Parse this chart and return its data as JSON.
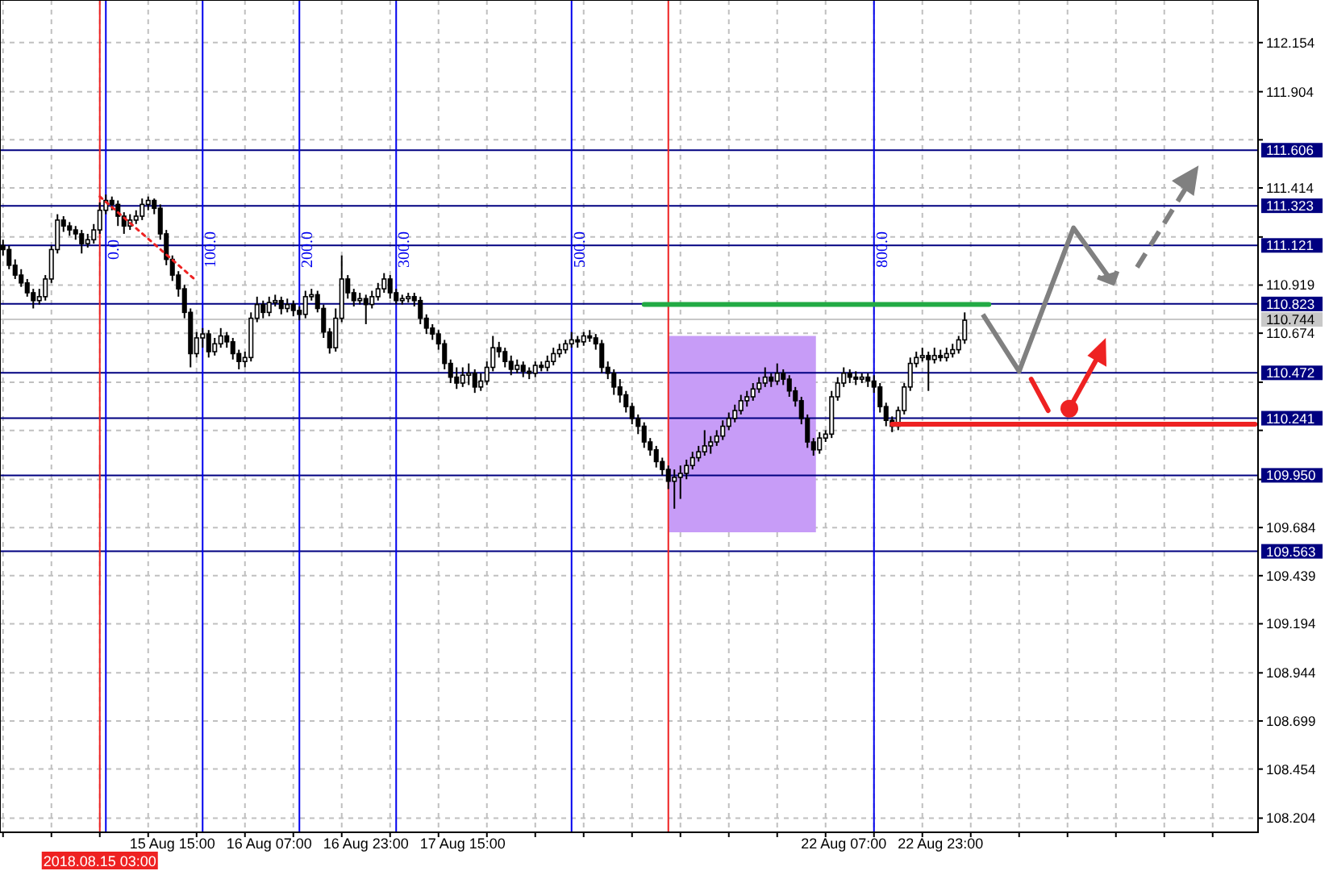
{
  "chart_data": {
    "type": "candlestick",
    "grid": true,
    "categories": [
      null,
      null,
      null,
      null,
      null,
      null,
      null,
      null,
      null,
      null,
      null,
      null,
      null,
      null,
      null,
      null,
      "2018.08.15 03:00",
      null,
      null,
      null,
      null,
      null,
      null,
      null,
      null,
      null,
      null,
      null,
      "15 Aug 15:00",
      null,
      null,
      null,
      null,
      null,
      null,
      null,
      null,
      null,
      null,
      null,
      null,
      null,
      null,
      null,
      "16 Aug 07:00",
      null,
      null,
      null,
      null,
      null,
      null,
      null,
      null,
      null,
      null,
      null,
      null,
      null,
      null,
      null,
      "16 Aug 23:00",
      null,
      null,
      null,
      null,
      null,
      null,
      null,
      null,
      null,
      null,
      null,
      null,
      null,
      null,
      null,
      "17 Aug 15:00",
      null,
      null,
      null,
      null,
      null,
      null,
      null,
      null,
      null,
      null,
      null,
      null,
      null,
      null,
      null,
      null,
      null,
      null,
      null,
      null,
      null,
      null,
      null,
      null,
      null,
      null,
      null,
      null,
      null,
      null,
      null,
      null,
      null,
      null,
      null,
      null,
      null,
      null,
      null,
      null,
      null,
      null,
      null,
      null,
      null,
      null,
      null,
      null,
      null,
      null,
      null,
      null,
      null,
      null,
      null,
      null,
      null,
      null,
      null,
      null,
      null,
      null,
      "22 Aug 07:00",
      null,
      null,
      null,
      null,
      null,
      null,
      null,
      null,
      null,
      null,
      null,
      null,
      null,
      null,
      null,
      "22 Aug 23:00",
      null,
      null,
      null,
      null,
      null,
      null,
      null,
      null,
      null,
      null,
      null,
      null,
      null,
      null,
      null,
      null,
      null,
      null,
      null,
      null,
      null,
      null,
      null,
      null,
      null,
      null,
      null,
      null,
      null,
      null,
      null,
      null,
      null,
      null,
      null,
      null,
      null,
      null,
      null,
      null,
      null,
      null,
      null,
      null,
      null,
      null,
      null,
      null,
      null,
      null,
      null,
      null
    ],
    "ohlc": [
      [
        111.12,
        111.15,
        111.07,
        111.1
      ],
      [
        111.1,
        111.12,
        111.0,
        111.02
      ],
      [
        111.02,
        111.05,
        110.95,
        110.97
      ],
      [
        110.97,
        111.0,
        110.91,
        110.93
      ],
      [
        110.93,
        110.95,
        110.86,
        110.88
      ],
      [
        110.88,
        110.9,
        110.8,
        110.84
      ],
      [
        110.84,
        110.9,
        110.82,
        110.86
      ],
      [
        110.86,
        110.97,
        110.84,
        110.95
      ],
      [
        110.95,
        111.12,
        110.93,
        111.1
      ],
      [
        111.1,
        111.28,
        111.08,
        111.25
      ],
      [
        111.25,
        111.27,
        111.19,
        111.22
      ],
      [
        111.22,
        111.24,
        111.17,
        111.2
      ],
      [
        111.2,
        111.22,
        111.15,
        111.18
      ],
      [
        111.18,
        111.2,
        111.08,
        111.13
      ],
      [
        111.13,
        111.18,
        111.11,
        111.15
      ],
      [
        111.15,
        111.23,
        111.13,
        111.2
      ],
      [
        111.2,
        111.34,
        111.18,
        111.3
      ],
      [
        111.3,
        111.38,
        111.28,
        111.35
      ],
      [
        111.35,
        111.37,
        111.3,
        111.33
      ],
      [
        111.33,
        111.35,
        111.22,
        111.27
      ],
      [
        111.27,
        111.29,
        111.18,
        111.22
      ],
      [
        111.22,
        111.28,
        111.2,
        111.25
      ],
      [
        111.25,
        111.3,
        111.23,
        111.27
      ],
      [
        111.27,
        111.36,
        111.25,
        111.33
      ],
      [
        111.33,
        111.37,
        111.3,
        111.35
      ],
      [
        111.35,
        111.36,
        111.28,
        111.31
      ],
      [
        111.31,
        111.33,
        111.15,
        111.18
      ],
      [
        111.18,
        111.2,
        111.02,
        111.05
      ],
      [
        111.05,
        111.07,
        110.94,
        110.97
      ],
      [
        110.97,
        110.99,
        110.86,
        110.9
      ],
      [
        110.9,
        110.92,
        110.75,
        110.78
      ],
      [
        110.78,
        110.8,
        110.5,
        110.57
      ],
      [
        110.57,
        110.68,
        110.55,
        110.65
      ],
      [
        110.65,
        110.7,
        110.6,
        110.67
      ],
      [
        110.67,
        110.69,
        110.55,
        110.58
      ],
      [
        110.58,
        110.65,
        110.56,
        110.62
      ],
      [
        110.62,
        110.7,
        110.6,
        110.66
      ],
      [
        110.66,
        110.68,
        110.6,
        110.63
      ],
      [
        110.63,
        110.65,
        110.54,
        110.57
      ],
      [
        110.57,
        110.59,
        110.49,
        110.53
      ],
      [
        110.53,
        110.58,
        110.5,
        110.55
      ],
      [
        110.55,
        110.78,
        110.53,
        110.75
      ],
      [
        110.75,
        110.86,
        110.73,
        110.82
      ],
      [
        110.82,
        110.84,
        110.75,
        110.78
      ],
      [
        110.78,
        110.86,
        110.76,
        110.83
      ],
      [
        110.83,
        110.87,
        110.81,
        110.84
      ],
      [
        110.84,
        110.86,
        110.77,
        110.8
      ],
      [
        110.8,
        110.85,
        110.78,
        110.82
      ],
      [
        110.82,
        110.84,
        110.76,
        110.79
      ],
      [
        110.79,
        110.81,
        110.74,
        110.77
      ],
      [
        110.77,
        110.89,
        110.75,
        110.86
      ],
      [
        110.86,
        110.9,
        110.84,
        110.87
      ],
      [
        110.87,
        110.89,
        110.78,
        110.8
      ],
      [
        110.8,
        110.82,
        110.65,
        110.68
      ],
      [
        110.68,
        110.7,
        110.57,
        110.6
      ],
      [
        110.6,
        110.8,
        110.58,
        110.75
      ],
      [
        110.75,
        111.07,
        110.73,
        110.95
      ],
      [
        110.95,
        110.97,
        110.85,
        110.88
      ],
      [
        110.88,
        110.9,
        110.81,
        110.84
      ],
      [
        110.84,
        110.88,
        110.82,
        110.85
      ],
      [
        110.85,
        110.87,
        110.72,
        110.82
      ],
      [
        110.82,
        110.89,
        110.8,
        110.86
      ],
      [
        110.86,
        110.93,
        110.84,
        110.9
      ],
      [
        110.9,
        110.98,
        110.88,
        110.95
      ],
      [
        110.95,
        110.97,
        110.85,
        110.88
      ],
      [
        110.88,
        110.9,
        110.82,
        110.84
      ],
      [
        110.84,
        110.87,
        110.82,
        110.85
      ],
      [
        110.85,
        110.88,
        110.83,
        110.86
      ],
      [
        110.86,
        110.88,
        110.81,
        110.84
      ],
      [
        110.84,
        110.86,
        110.72,
        110.75
      ],
      [
        110.75,
        110.77,
        110.67,
        110.7
      ],
      [
        110.7,
        110.72,
        110.64,
        110.67
      ],
      [
        110.67,
        110.69,
        110.59,
        110.62
      ],
      [
        110.62,
        110.64,
        110.49,
        110.52
      ],
      [
        110.52,
        110.54,
        110.42,
        110.45
      ],
      [
        110.45,
        110.5,
        110.39,
        110.42
      ],
      [
        110.42,
        110.5,
        110.4,
        110.46
      ],
      [
        110.46,
        110.52,
        110.41,
        110.47
      ],
      [
        110.47,
        110.49,
        110.37,
        110.4
      ],
      [
        110.4,
        110.47,
        110.38,
        110.43
      ],
      [
        110.43,
        110.53,
        110.41,
        110.5
      ],
      [
        110.5,
        110.66,
        110.48,
        110.6
      ],
      [
        110.6,
        110.63,
        110.55,
        110.58
      ],
      [
        110.58,
        110.6,
        110.5,
        110.53
      ],
      [
        110.53,
        110.56,
        110.46,
        110.49
      ],
      [
        110.49,
        110.54,
        110.47,
        110.51
      ],
      [
        110.51,
        110.53,
        110.45,
        110.48
      ],
      [
        110.48,
        110.5,
        110.44,
        110.47
      ],
      [
        110.47,
        110.53,
        110.45,
        110.51
      ],
      [
        110.51,
        110.53,
        110.48,
        110.5
      ],
      [
        110.5,
        110.56,
        110.48,
        110.53
      ],
      [
        110.53,
        110.6,
        110.51,
        110.57
      ],
      [
        110.57,
        110.62,
        110.55,
        110.59
      ],
      [
        110.59,
        110.64,
        110.57,
        110.62
      ],
      [
        110.62,
        110.68,
        110.6,
        110.64
      ],
      [
        110.64,
        110.66,
        110.6,
        110.63
      ],
      [
        110.63,
        110.68,
        110.61,
        110.66
      ],
      [
        110.66,
        110.69,
        110.63,
        110.65
      ],
      [
        110.65,
        110.67,
        110.59,
        110.62
      ],
      [
        110.62,
        110.64,
        110.47,
        110.5
      ],
      [
        110.5,
        110.53,
        110.44,
        110.47
      ],
      [
        110.47,
        110.49,
        110.36,
        110.4
      ],
      [
        110.4,
        110.44,
        110.32,
        110.36
      ],
      [
        110.36,
        110.38,
        110.27,
        110.3
      ],
      [
        110.3,
        110.32,
        110.21,
        110.24
      ],
      [
        110.24,
        110.26,
        110.16,
        110.2
      ],
      [
        110.2,
        110.22,
        110.09,
        110.12
      ],
      [
        110.12,
        110.14,
        110.05,
        110.08
      ],
      [
        110.08,
        110.1,
        109.99,
        110.02
      ],
      [
        110.02,
        110.04,
        109.95,
        109.98
      ],
      [
        109.98,
        110.0,
        109.88,
        109.92
      ],
      [
        109.92,
        109.98,
        109.78,
        109.94
      ],
      [
        109.94,
        110.0,
        109.83,
        109.96
      ],
      [
        109.96,
        110.03,
        109.93,
        110.0
      ],
      [
        110.0,
        110.07,
        109.98,
        110.04
      ],
      [
        110.04,
        110.1,
        110.02,
        110.07
      ],
      [
        110.07,
        110.18,
        110.05,
        110.1
      ],
      [
        110.1,
        110.15,
        110.06,
        110.12
      ],
      [
        110.12,
        110.18,
        110.1,
        110.15
      ],
      [
        110.15,
        110.23,
        110.13,
        110.2
      ],
      [
        110.2,
        110.27,
        110.18,
        110.24
      ],
      [
        110.24,
        110.31,
        110.22,
        110.28
      ],
      [
        110.28,
        110.36,
        110.26,
        110.33
      ],
      [
        110.33,
        110.38,
        110.3,
        110.35
      ],
      [
        110.35,
        110.42,
        110.33,
        110.39
      ],
      [
        110.39,
        110.45,
        110.37,
        110.42
      ],
      [
        110.42,
        110.5,
        110.4,
        110.45
      ],
      [
        110.45,
        110.47,
        110.4,
        110.43
      ],
      [
        110.43,
        110.52,
        110.41,
        110.47
      ],
      [
        110.47,
        110.49,
        110.41,
        110.44
      ],
      [
        110.44,
        110.46,
        110.35,
        110.38
      ],
      [
        110.38,
        110.4,
        110.3,
        110.33
      ],
      [
        110.33,
        110.35,
        110.21,
        110.24
      ],
      [
        110.24,
        110.26,
        110.09,
        110.12
      ],
      [
        110.12,
        110.14,
        110.05,
        110.08
      ],
      [
        110.08,
        110.17,
        110.06,
        110.14
      ],
      [
        110.14,
        110.18,
        110.12,
        110.16
      ],
      [
        110.16,
        110.38,
        110.14,
        110.35
      ],
      [
        110.35,
        110.45,
        110.33,
        110.42
      ],
      [
        110.42,
        110.5,
        110.4,
        110.47
      ],
      [
        110.47,
        110.49,
        110.42,
        110.45
      ],
      [
        110.45,
        110.48,
        110.41,
        110.44
      ],
      [
        110.44,
        110.47,
        110.42,
        110.45
      ],
      [
        110.45,
        110.47,
        110.4,
        110.43
      ],
      [
        110.43,
        110.46,
        110.37,
        110.4
      ],
      [
        110.4,
        110.42,
        110.27,
        110.3
      ],
      [
        110.3,
        110.32,
        110.2,
        110.23
      ],
      [
        110.23,
        110.25,
        110.17,
        110.2
      ],
      [
        110.2,
        110.3,
        110.18,
        110.28
      ],
      [
        110.28,
        110.42,
        110.26,
        110.4
      ],
      [
        110.4,
        110.55,
        110.38,
        110.52
      ],
      [
        110.52,
        110.58,
        110.5,
        110.55
      ],
      [
        110.55,
        110.6,
        110.53,
        110.56
      ],
      [
        110.56,
        110.58,
        110.38,
        110.54
      ],
      [
        110.54,
        110.6,
        110.52,
        110.56
      ],
      [
        110.56,
        110.59,
        110.53,
        110.55
      ],
      [
        110.55,
        110.6,
        110.53,
        110.57
      ],
      [
        110.57,
        110.62,
        110.55,
        110.59
      ],
      [
        110.59,
        110.66,
        110.57,
        110.64
      ],
      [
        110.64,
        110.78,
        110.62,
        110.74
      ],
      null,
      null,
      null,
      null,
      null,
      null,
      null,
      null,
      null,
      null,
      null,
      null,
      null,
      null,
      null,
      null,
      null,
      null,
      null,
      null,
      null,
      null,
      null,
      null,
      null,
      null,
      null,
      null,
      null,
      null,
      null,
      null,
      null,
      null,
      null,
      null,
      null,
      null,
      null,
      null,
      null,
      null,
      null,
      null,
      null,
      null,
      null,
      null
    ],
    "series": [
      {
        "type": "line",
        "color": "#22aa44",
        "line_style": "solid",
        "values": [
          null,
          null,
          null,
          null,
          null,
          null,
          null,
          null,
          null,
          null,
          null,
          null,
          null,
          null,
          null,
          null,
          null,
          null,
          null,
          null,
          null,
          null,
          null,
          null,
          null,
          null,
          null,
          null,
          null,
          null,
          null,
          null,
          null,
          null,
          null,
          null,
          null,
          null,
          null,
          null,
          null,
          null,
          null,
          null,
          null,
          null,
          null,
          null,
          null,
          null,
          null,
          null,
          null,
          null,
          null,
          null,
          null,
          null,
          null,
          null,
          null,
          null,
          null,
          null,
          null,
          null,
          null,
          null,
          null,
          null,
          null,
          null,
          null,
          null,
          null,
          null,
          null,
          null,
          null,
          null,
          null,
          null,
          null,
          null,
          null,
          null,
          null,
          null,
          null,
          null,
          null,
          null,
          null,
          null,
          null,
          null,
          null,
          null,
          null,
          null,
          null,
          null,
          null,
          null,
          null,
          null,
          110.82,
          null,
          null,
          null,
          null,
          null,
          null,
          null,
          null,
          null,
          null,
          null,
          null,
          null,
          null,
          null,
          null,
          null,
          null,
          null,
          null,
          null,
          null,
          null,
          null,
          null,
          null,
          null,
          null,
          null,
          null,
          null,
          null,
          null,
          null,
          null,
          null,
          null,
          null,
          null,
          null,
          null,
          null,
          null,
          null,
          null,
          null,
          null,
          null,
          null,
          null,
          null,
          null,
          null,
          null,
          null,
          null,
          110.82,
          null,
          null,
          null,
          null,
          null,
          null,
          null,
          null,
          null,
          null,
          null,
          null,
          null,
          null,
          null,
          null,
          null,
          null,
          null,
          null,
          null,
          null,
          null,
          null,
          null,
          null,
          null,
          null,
          null,
          null,
          null,
          null,
          null,
          null,
          null,
          null,
          null,
          null,
          null,
          null,
          null,
          null,
          null,
          null
        ]
      },
      {
        "type": "line",
        "color": "#ee2222",
        "line_style": "solid",
        "values": [
          null,
          null,
          null,
          null,
          null,
          null,
          null,
          null,
          null,
          null,
          null,
          null,
          null,
          null,
          null,
          null,
          null,
          null,
          null,
          null,
          null,
          null,
          null,
          null,
          null,
          null,
          null,
          null,
          null,
          null,
          null,
          null,
          null,
          null,
          null,
          null,
          null,
          null,
          null,
          null,
          null,
          null,
          null,
          null,
          null,
          null,
          null,
          null,
          null,
          null,
          null,
          null,
          null,
          null,
          null,
          null,
          null,
          null,
          null,
          null,
          null,
          null,
          null,
          null,
          null,
          null,
          null,
          null,
          null,
          null,
          null,
          null,
          null,
          null,
          null,
          null,
          null,
          null,
          null,
          null,
          null,
          null,
          null,
          null,
          null,
          null,
          null,
          null,
          null,
          null,
          null,
          null,
          null,
          null,
          null,
          null,
          null,
          null,
          null,
          null,
          null,
          null,
          null,
          null,
          null,
          null,
          null,
          null,
          null,
          null,
          null,
          null,
          null,
          null,
          null,
          null,
          null,
          null,
          null,
          null,
          null,
          null,
          null,
          null,
          null,
          null,
          null,
          null,
          null,
          null,
          null,
          null,
          null,
          null,
          null,
          null,
          null,
          null,
          null,
          null,
          null,
          null,
          null,
          null,
          null,
          null,
          null,
          110.21,
          null,
          null,
          null,
          null,
          null,
          null,
          null,
          null,
          null,
          null,
          null,
          null,
          null,
          null,
          null,
          null,
          null,
          null,
          null,
          null,
          null,
          null,
          null,
          null,
          null,
          null,
          null,
          null,
          null,
          null,
          null,
          null,
          null,
          null,
          null,
          null,
          null,
          null,
          null,
          null,
          null,
          null,
          null,
          null,
          null,
          null,
          null,
          null,
          null,
          null,
          null,
          null,
          null,
          null,
          null,
          null,
          null,
          null,
          null,
          110.21
        ]
      },
      {
        "type": "line",
        "color": "#ee2222",
        "line_style": "dotted",
        "values": [
          null,
          null,
          null,
          null,
          null,
          null,
          null,
          null,
          null,
          null,
          null,
          null,
          null,
          null,
          null,
          null,
          111.37,
          null,
          null,
          null,
          null,
          null,
          null,
          null,
          null,
          null,
          null,
          null,
          null,
          null,
          null,
          null,
          110.94,
          null,
          null,
          null,
          null,
          null,
          null,
          null,
          null,
          null,
          null,
          null,
          null,
          null,
          null,
          null,
          null,
          null,
          null,
          null,
          null,
          null,
          null,
          null,
          null,
          null,
          null,
          null,
          null,
          null,
          null,
          null,
          null,
          null,
          null,
          null,
          null,
          null,
          null,
          null,
          null,
          null,
          null,
          null,
          null,
          null,
          null,
          null,
          null,
          null,
          null,
          null,
          null,
          null,
          null,
          null,
          null,
          null,
          null,
          null,
          null,
          null,
          null,
          null,
          null,
          null,
          null,
          null,
          null,
          null,
          null,
          null,
          null,
          null,
          null,
          null,
          null,
          null,
          null,
          null,
          null,
          null,
          null,
          null,
          null,
          null,
          null,
          null,
          null,
          null,
          null,
          null,
          null,
          null,
          null,
          null,
          null,
          null,
          null,
          null,
          null,
          null,
          null,
          null,
          null,
          null,
          null,
          null,
          null,
          null,
          null,
          null,
          null,
          null,
          null,
          null,
          null,
          null,
          null,
          null,
          null,
          null,
          null,
          null,
          null,
          null,
          null,
          null,
          null,
          null,
          null,
          null,
          null,
          null,
          null,
          null,
          null,
          null,
          null,
          null,
          null,
          null,
          null,
          null,
          null,
          null,
          null,
          null,
          null,
          null,
          null,
          null,
          null,
          null,
          null,
          null,
          null,
          null,
          null,
          null,
          null,
          null,
          null,
          null,
          null,
          null,
          null,
          null,
          null,
          null,
          null,
          null,
          null,
          null,
          null,
          null
        ]
      }
    ],
    "ylim": [
      108.132,
      112.371
    ],
    "yticks": [
      108.204,
      108.454,
      108.699,
      108.944,
      109.194,
      109.439,
      109.684,
      {
        "value": 109.929,
        "label": null
      },
      {
        "value": 110.179,
        "label": null
      },
      {
        "value": 110.424,
        "label": null
      },
      110.674,
      110.919,
      {
        "value": 111.164,
        "label": null
      },
      111.414,
      {
        "value": 111.659,
        "label": null
      },
      111.904,
      112.154
    ],
    "ref_lines": [
      {
        "axis": "y",
        "value": 111.606,
        "label": "111.606",
        "color": "#000080"
      },
      {
        "axis": "y",
        "value": 111.323,
        "label": "111.323",
        "color": "#000080"
      },
      {
        "axis": "y",
        "value": 111.121,
        "label": "111.121",
        "color": "#000080"
      },
      {
        "axis": "y",
        "value": 110.823,
        "label": "110.823",
        "color": "#000080"
      },
      {
        "axis": "y",
        "value": 110.744,
        "label": "110.744",
        "color": "#c8c8c8"
      },
      {
        "axis": "y",
        "value": 110.472,
        "label": "110.472",
        "color": "#000080"
      },
      {
        "axis": "y",
        "value": 110.241,
        "label": "110.241",
        "color": "#000080"
      },
      {
        "axis": "y",
        "value": 109.95,
        "label": "109.950",
        "color": "#000080"
      },
      {
        "axis": "y",
        "value": 109.563,
        "label": "109.563",
        "color": "#000080"
      },
      {
        "axis": "x",
        "value": "2018.08.15 03:00",
        "color": "#ee2222"
      }
    ],
    "annotations": [
      "0.0",
      "100.0",
      "200.0",
      "300.0",
      "500.0",
      "800.0"
    ]
  }
}
